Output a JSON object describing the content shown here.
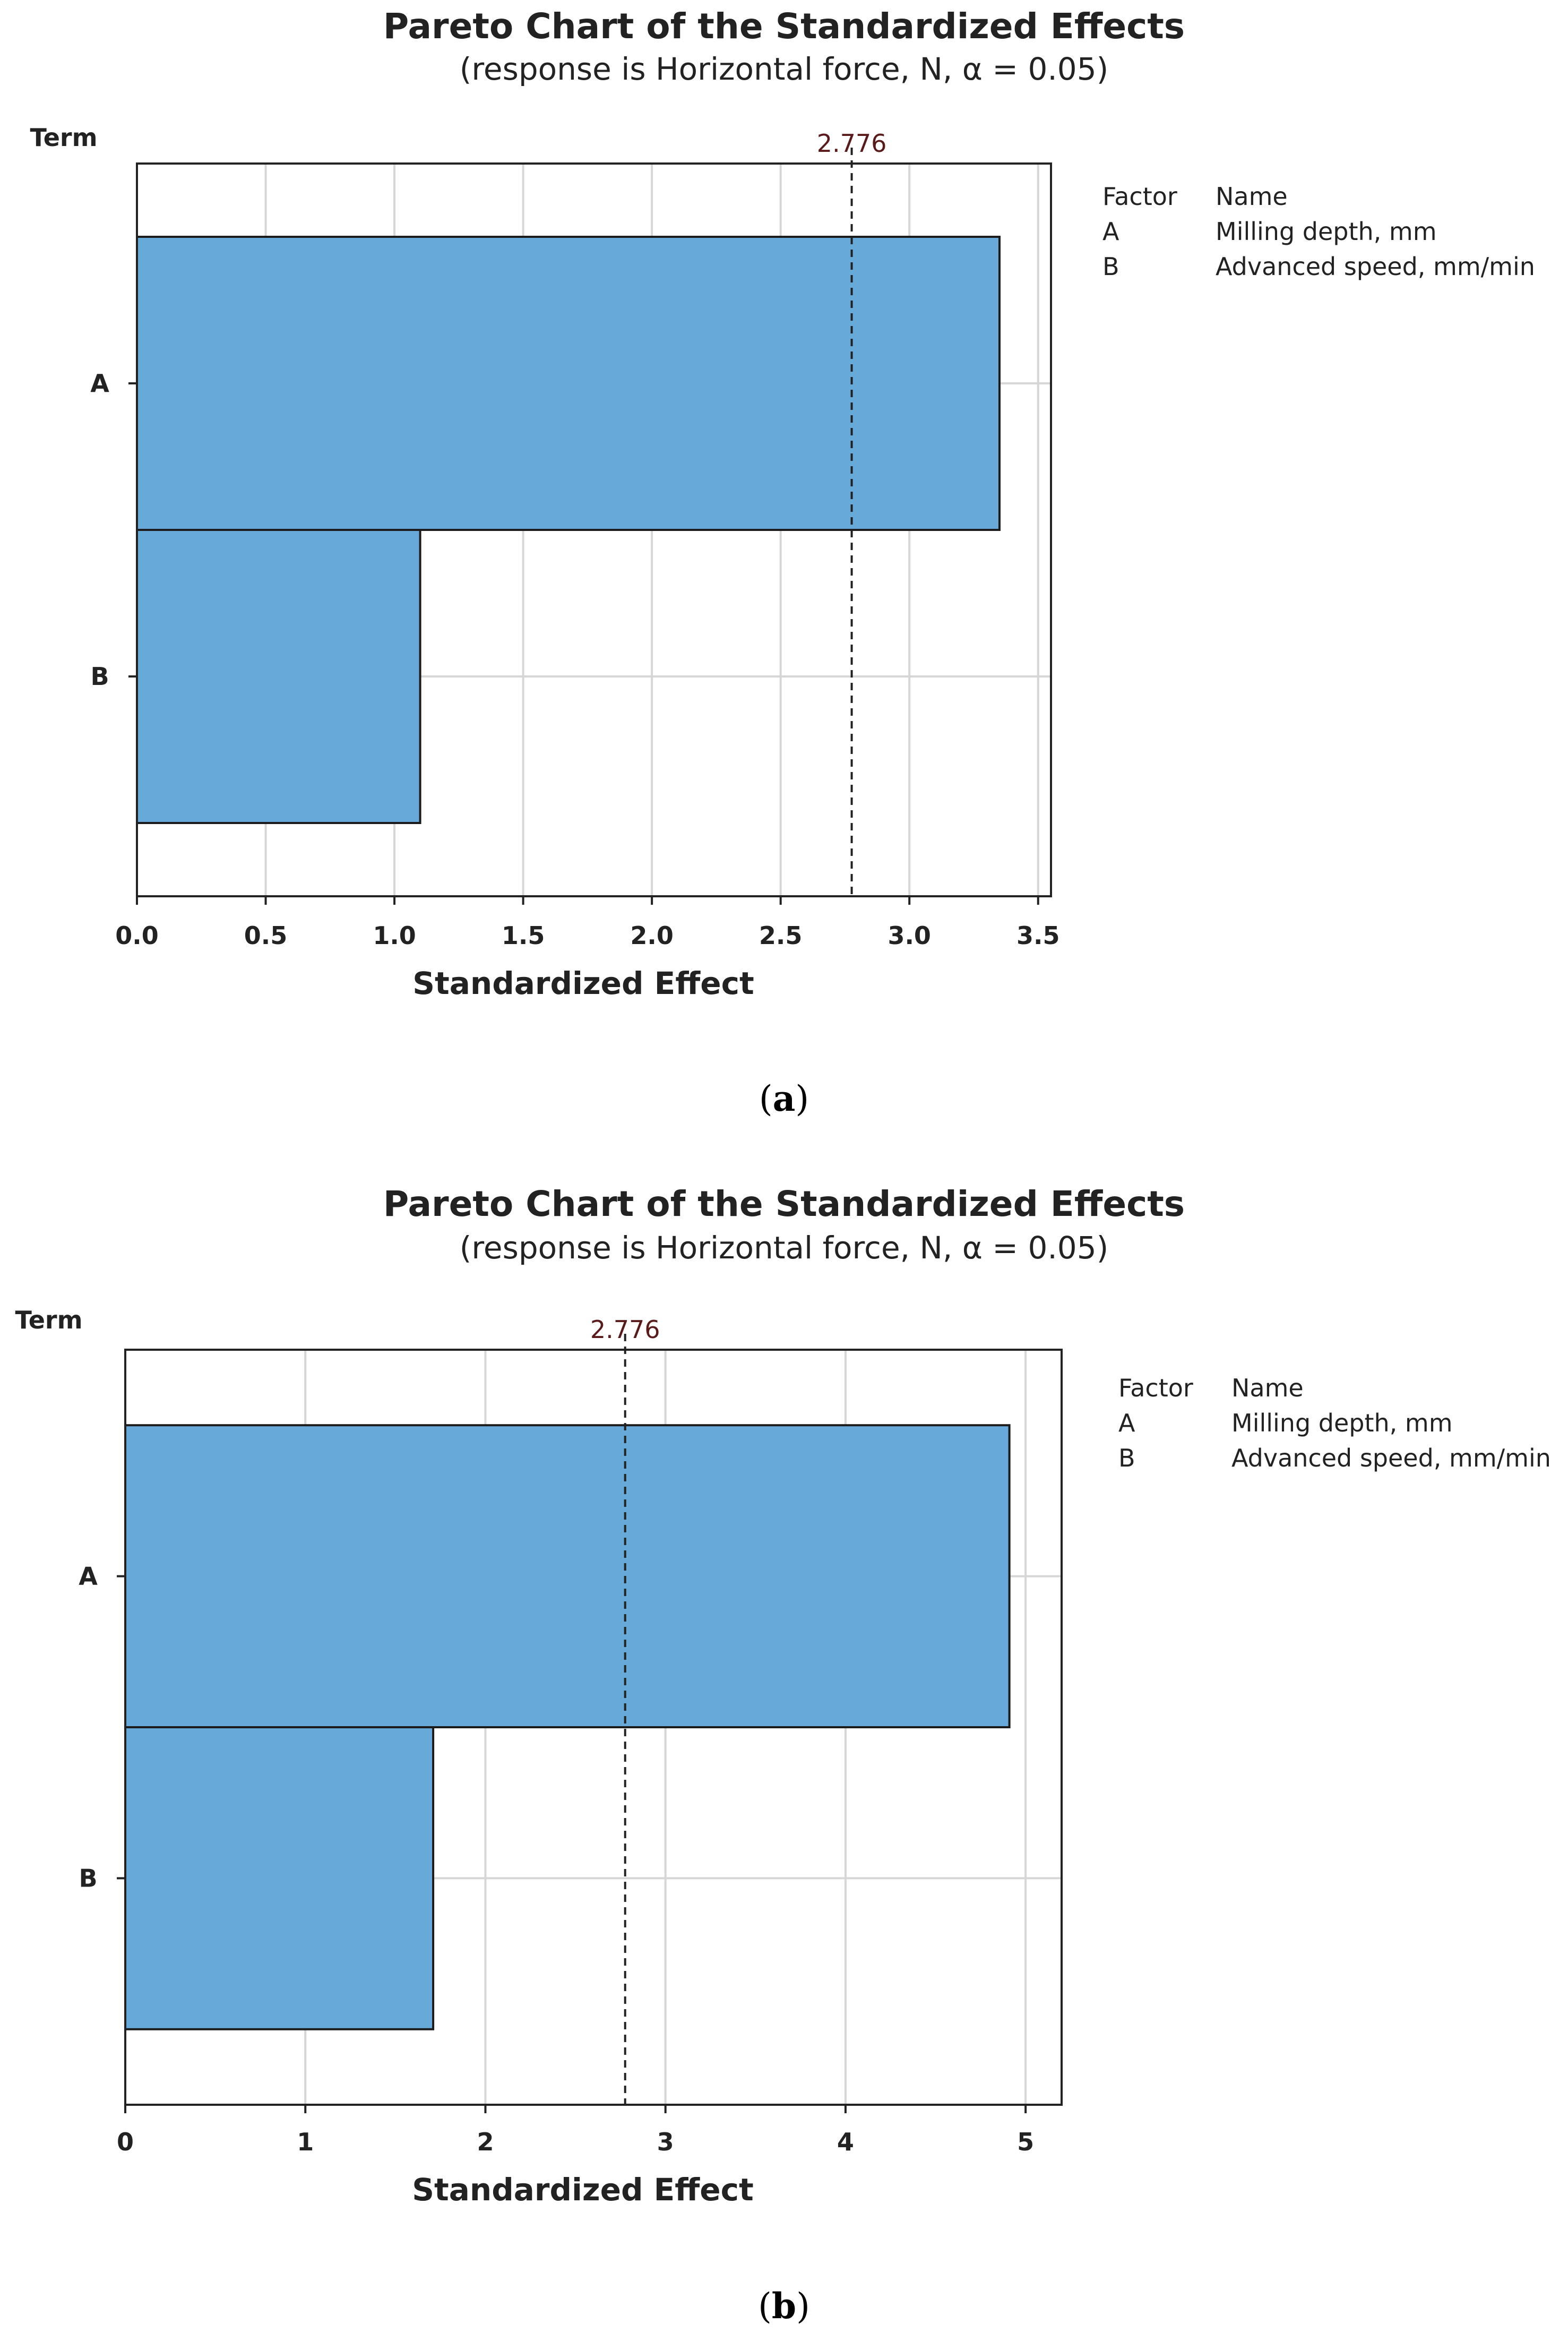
{
  "chart_data": [
    {
      "type": "bar",
      "orientation": "horizontal",
      "title": "Pareto Chart of the Standardized Effects",
      "subtitle": "(response is Horizontal force, N, α = 0.05)",
      "ylabel": "Term",
      "xlabel": "Standardized Effect",
      "categories": [
        "A",
        "B"
      ],
      "values": [
        3.35,
        1.1
      ],
      "xlim": [
        0,
        3.55
      ],
      "ticks": [
        "0.0",
        "0.5",
        "1.0",
        "1.5",
        "2.0",
        "2.5",
        "3.0",
        "3.5"
      ],
      "tick_values": [
        0,
        0.5,
        1.0,
        1.5,
        2.0,
        2.5,
        3.0,
        3.5
      ],
      "critical_value": 2.776,
      "critical_label": "2.776",
      "legend": {
        "header_factor": "Factor",
        "header_name": "Name",
        "rows": [
          {
            "factor": "A",
            "name": "Milling depth, mm"
          },
          {
            "factor": "B",
            "name": "Advanced speed, mm/min"
          }
        ]
      },
      "caption_open": "(",
      "caption_letter": "a",
      "caption_close": ")",
      "bar_color": "#67a9d9"
    },
    {
      "type": "bar",
      "orientation": "horizontal",
      "title": "Pareto Chart of the Standardized Effects",
      "subtitle": "(response is Horizontal force, N, α = 0.05)",
      "ylabel": "Term",
      "xlabel": "Standardized Effect",
      "categories": [
        "A",
        "B"
      ],
      "values": [
        4.91,
        1.71
      ],
      "xlim": [
        0,
        5.2
      ],
      "ticks": [
        "0",
        "1",
        "2",
        "3",
        "4",
        "5"
      ],
      "tick_values": [
        0,
        1,
        2,
        3,
        4,
        5
      ],
      "critical_value": 2.776,
      "critical_label": "2.776",
      "legend": {
        "header_factor": "Factor",
        "header_name": "Name",
        "rows": [
          {
            "factor": "A",
            "name": "Milling depth, mm"
          },
          {
            "factor": "B",
            "name": "Advanced speed, mm/min"
          }
        ]
      },
      "caption_open": "(",
      "caption_letter": "b",
      "caption_close": ")",
      "bar_color": "#67a9d9"
    }
  ]
}
